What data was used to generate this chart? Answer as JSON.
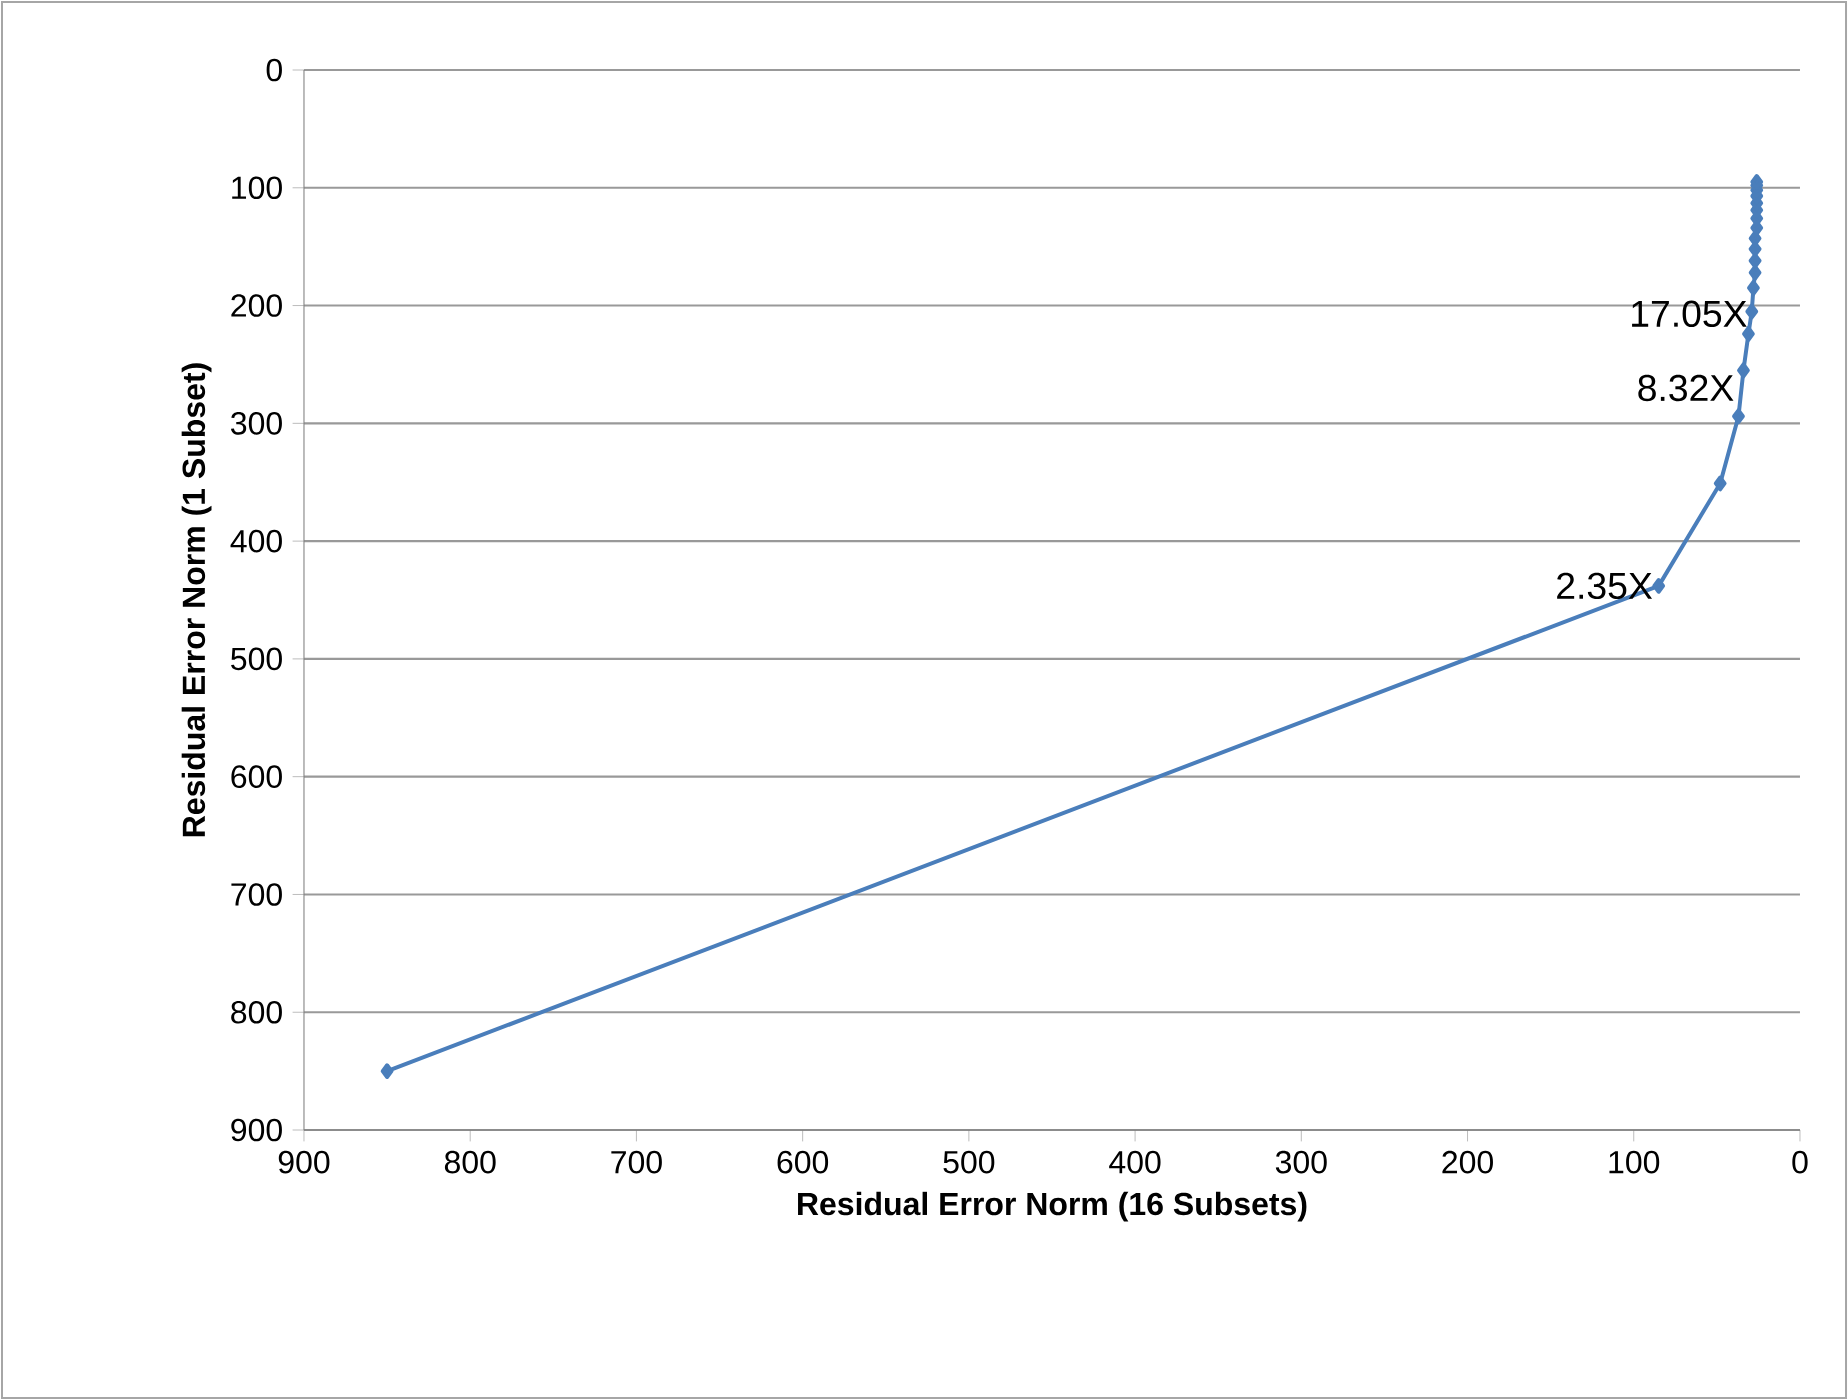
{
  "chart_data": {
    "type": "line",
    "xlabel": "Residual Error Norm (16 Subsets)",
    "ylabel": "Residual Error Norm (1 Subset)",
    "x": [
      850,
      85,
      48,
      37,
      34,
      31,
      29,
      28,
      27,
      27,
      27,
      27,
      26,
      26,
      26,
      26,
      26,
      26,
      26,
      26
    ],
    "values": [
      850,
      438,
      351,
      294,
      255,
      224,
      205,
      185,
      172,
      162,
      152,
      143,
      134,
      126,
      119,
      113,
      107,
      102,
      98,
      95
    ],
    "color": "#4a7ebb",
    "marker": "diamond",
    "line_style": "solid",
    "grid": "y",
    "xlim": [
      900,
      0
    ],
    "ylim": [
      900,
      0
    ],
    "xticks": [
      900,
      800,
      700,
      600,
      500,
      400,
      300,
      200,
      100,
      0
    ],
    "yticks": [
      0,
      100,
      200,
      300,
      400,
      500,
      600,
      700,
      800,
      900
    ],
    "annotations": [
      {
        "text": "2.35X",
        "x": 85,
        "y": 438
      },
      {
        "text": "8.32X",
        "x": 36,
        "y": 270
      },
      {
        "text": "17.05X",
        "x": 28,
        "y": 207
      }
    ]
  }
}
